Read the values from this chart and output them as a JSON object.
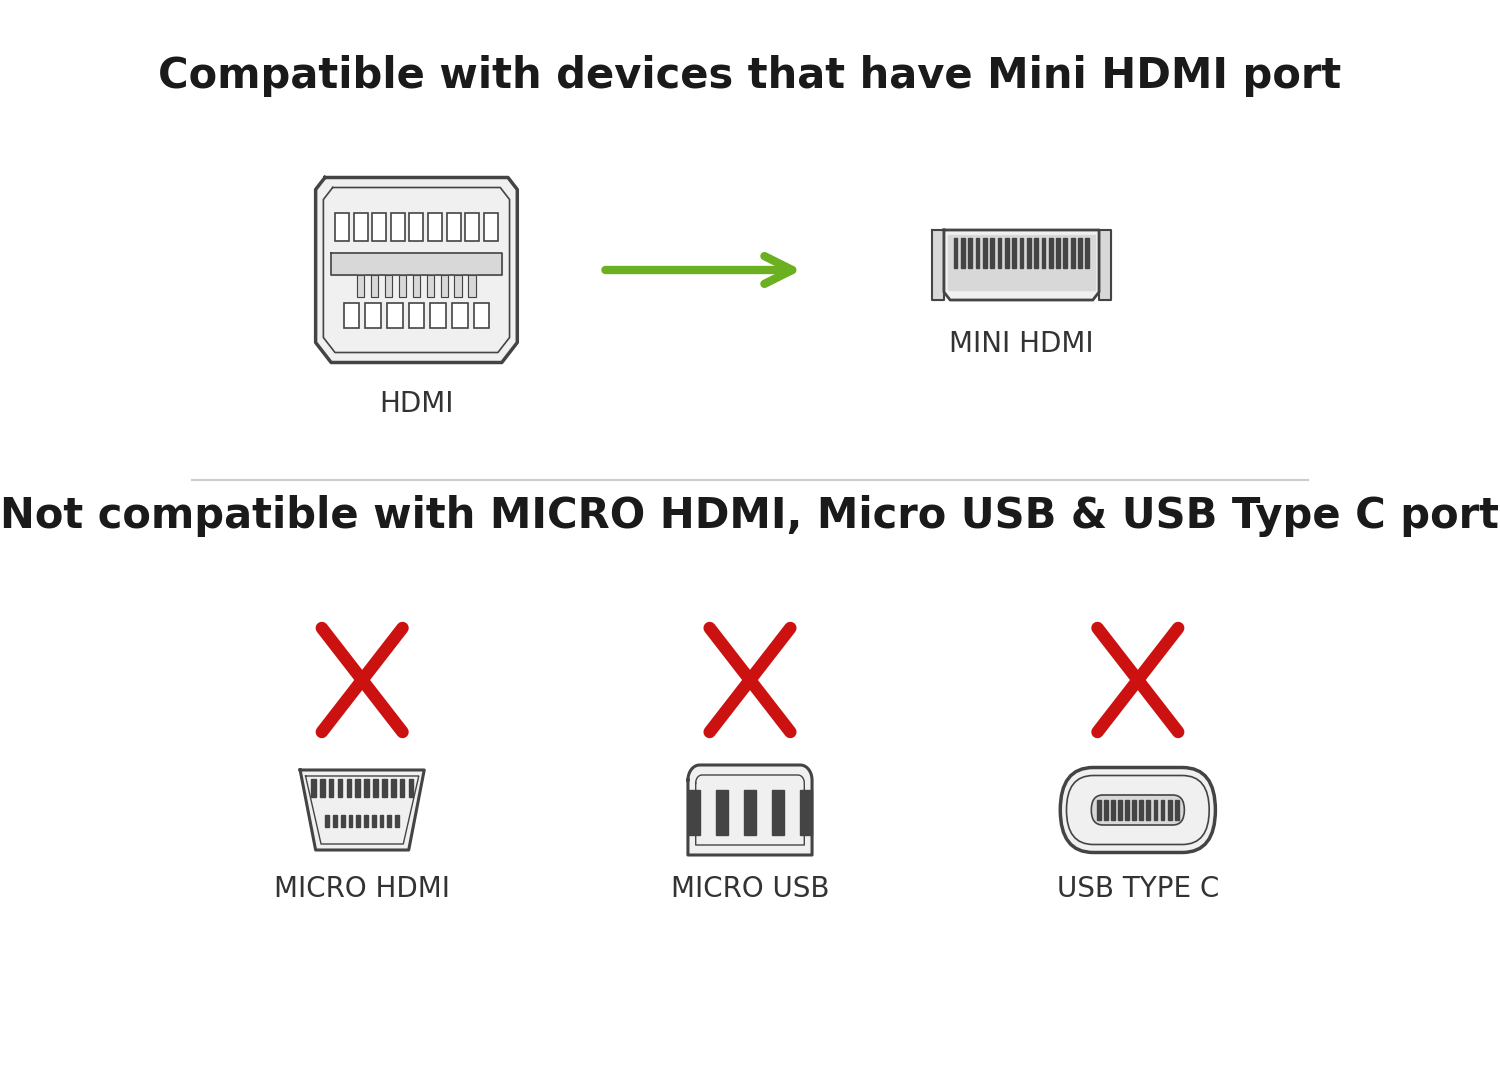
{
  "title_top": "Compatible with devices that have Mini HDMI port",
  "title_bottom": "Not compatible with MICRO HDMI, Micro USB & USB Type C port",
  "label_hdmi": "HDMI",
  "label_mini_hdmi": "MINI HDMI",
  "label_micro_hdmi": "MICRO HDMI",
  "label_micro_usb": "MICRO USB",
  "label_usb_type_c": "USB TYPE C",
  "bg_color": "#ffffff",
  "title_color": "#1a1a1a",
  "connector_color": "#444444",
  "connector_fill": "#f0f0f0",
  "connector_fill2": "#d8d8d8",
  "arrow_color": "#6ab020",
  "cross_color": "#cc1111",
  "label_color": "#333333",
  "title_fontsize": 30,
  "label_fontsize": 20
}
